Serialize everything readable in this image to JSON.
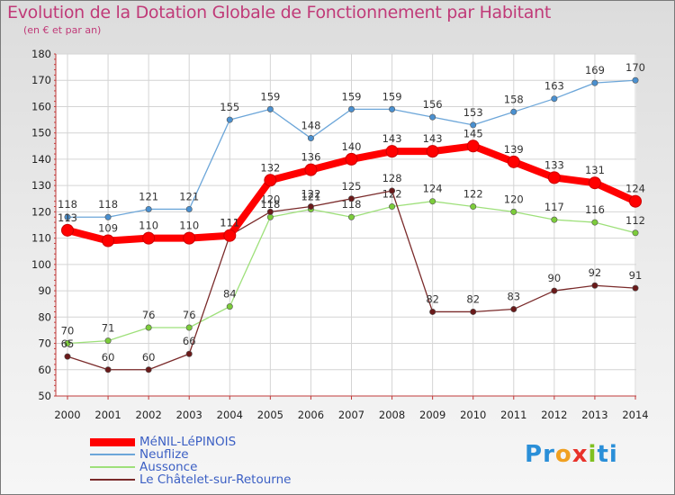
{
  "title": "Evolution de la Dotation Globale de Fonctionnement par Habitant",
  "subtitle": "(en € et par an)",
  "brand": {
    "letters": [
      "P",
      "r",
      "o",
      "x",
      "i",
      "t",
      "i"
    ],
    "colors": [
      "#2a8fd8",
      "#2a8fd8",
      "#f0a020",
      "#e8322a",
      "#80c020",
      "#2a8fd8",
      "#2a8fd8"
    ]
  },
  "chart_data": {
    "type": "line",
    "title": "Evolution de la Dotation Globale de Fonctionnement par Habitant",
    "xlabel": "",
    "ylabel": "(en € et par an)",
    "x": [
      "2000",
      "2001",
      "2002",
      "2003",
      "2004",
      "2005",
      "2006",
      "2007",
      "2008",
      "2009",
      "2010",
      "2011",
      "2012",
      "2013",
      "2014"
    ],
    "ylim": [
      50,
      180
    ],
    "yticks": [
      50,
      60,
      70,
      80,
      90,
      100,
      110,
      120,
      130,
      140,
      150,
      160,
      170,
      180
    ],
    "grid": true,
    "legend": "bottom-left",
    "series": [
      {
        "name": "MéNIL-LéPINOIS",
        "color": "#ff0000",
        "marker": "#ff0000",
        "bold": true,
        "values": [
          113,
          109,
          110,
          110,
          111,
          132,
          136,
          140,
          143,
          143,
          145,
          139,
          133,
          131,
          124
        ]
      },
      {
        "name": "Neuflize",
        "color": "#6ca6d9",
        "marker": "#4a90d0",
        "bold": false,
        "values": [
          118,
          118,
          121,
          121,
          155,
          159,
          148,
          159,
          159,
          156,
          153,
          158,
          163,
          169,
          170
        ]
      },
      {
        "name": "Aussonce",
        "color": "#9ee07a",
        "marker": "#7ccc3a",
        "bold": false,
        "values": [
          70,
          71,
          76,
          76,
          84,
          118,
          121,
          118,
          122,
          124,
          122,
          120,
          117,
          116,
          112
        ]
      },
      {
        "name": "Le Châtelet-sur-Retourne",
        "color": "#7a2a2a",
        "marker": "#6a1a1a",
        "bold": false,
        "values": [
          65,
          60,
          60,
          66,
          111,
          120,
          122,
          125,
          128,
          82,
          82,
          83,
          90,
          92,
          91
        ]
      }
    ]
  }
}
